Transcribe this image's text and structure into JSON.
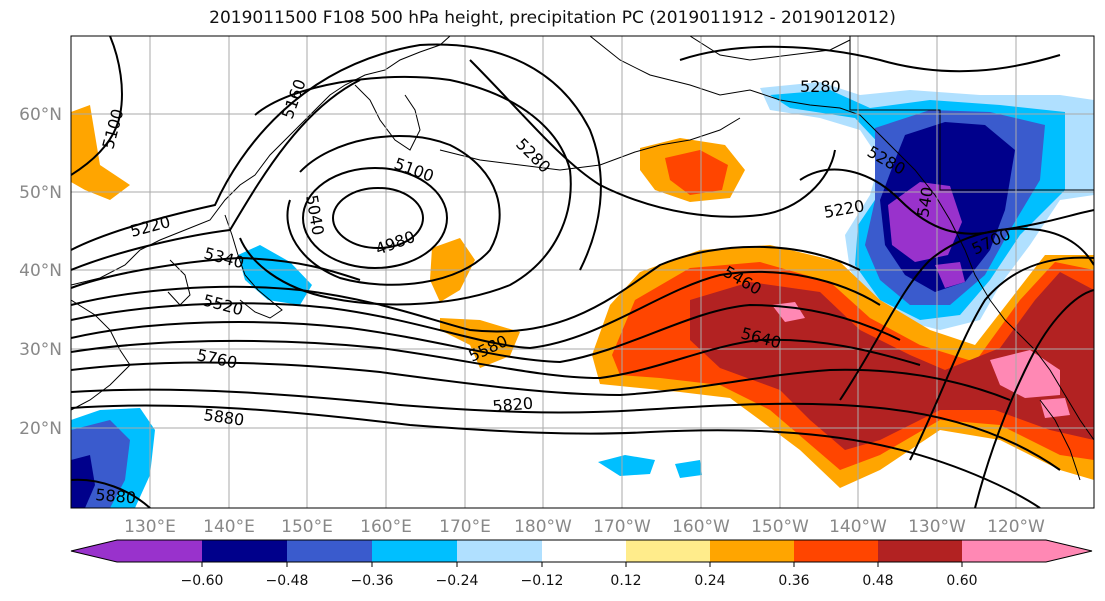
{
  "title": "2019011500 F108 500 hPa height, precipitation PC (2019011912 - 2019012012)",
  "map": {
    "lon_labels": [
      "130°E",
      "140°E",
      "150°E",
      "160°E",
      "170°E",
      "180°W",
      "170°W",
      "160°W",
      "150°W",
      "140°W",
      "130°W",
      "120°W"
    ],
    "lat_labels": [
      "60°N",
      "50°N",
      "40°N",
      "30°N",
      "20°N"
    ],
    "contour_labels": [
      "5100",
      "5160",
      "5100",
      "5040",
      "4980",
      "5220",
      "5340",
      "5280",
      "5460",
      "5520",
      "5580",
      "5640",
      "5760",
      "5820",
      "5880",
      "5880",
      "5280",
      "5280",
      "5220",
      "540",
      "5700"
    ],
    "land_color": "#000000",
    "grid_color": "#aaaaaa"
  },
  "colorbar": {
    "colors": [
      "#9932cc",
      "#00008b",
      "#3a5bcd",
      "#00bfff",
      "#b0e0ff",
      "#ffffff",
      "#ffec8b",
      "#ffa500",
      "#ff4500",
      "#b22222",
      "#ff88b4"
    ],
    "ticks": [
      "−0.60",
      "−0.48",
      "−0.36",
      "−0.24",
      "−0.12",
      "0.12",
      "0.24",
      "0.36",
      "0.48",
      "0.60"
    ]
  }
}
